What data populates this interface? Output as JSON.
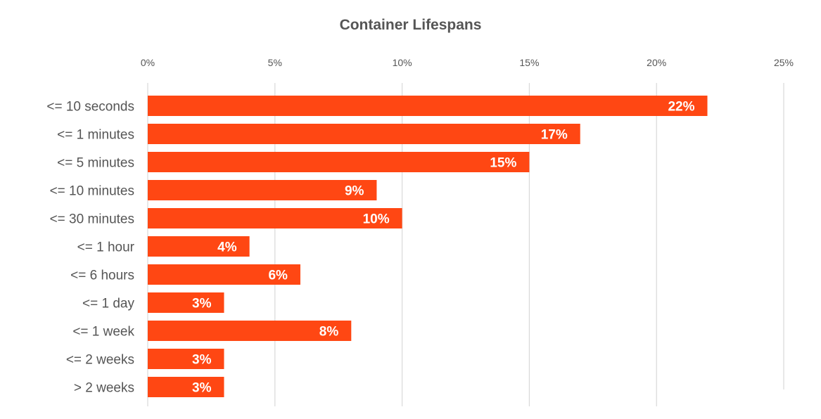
{
  "chart_data": {
    "type": "bar",
    "orientation": "horizontal",
    "title": "Container Lifespans",
    "xlabel": "",
    "ylabel": "",
    "xlim": [
      0,
      25
    ],
    "x_ticks": [
      0,
      5,
      10,
      15,
      20,
      25
    ],
    "x_tick_labels": [
      "0%",
      "5%",
      "10%",
      "15%",
      "20%",
      "25%"
    ],
    "x_axis_position": "top",
    "grid": true,
    "legend": "none",
    "categories": [
      "<= 10 seconds",
      "<= 1 minutes",
      "<= 5 minutes",
      "<= 10 minutes",
      "<= 30 minutes",
      "<= 1 hour",
      "<= 6 hours",
      "<= 1 day",
      "<= 1 week",
      "<= 2 weeks",
      "> 2 weeks"
    ],
    "values": [
      22,
      17,
      15,
      9,
      10,
      4,
      6,
      3,
      8,
      3,
      3
    ],
    "data_labels": [
      "22%",
      "17%",
      "15%",
      "9%",
      "10%",
      "4%",
      "6%",
      "3%",
      "8%",
      "3%",
      "3%"
    ],
    "bar_color": "#ff4713",
    "label_color": "#ffffff",
    "grid_color": "#d9d9d9",
    "text_color": "#555555"
  }
}
